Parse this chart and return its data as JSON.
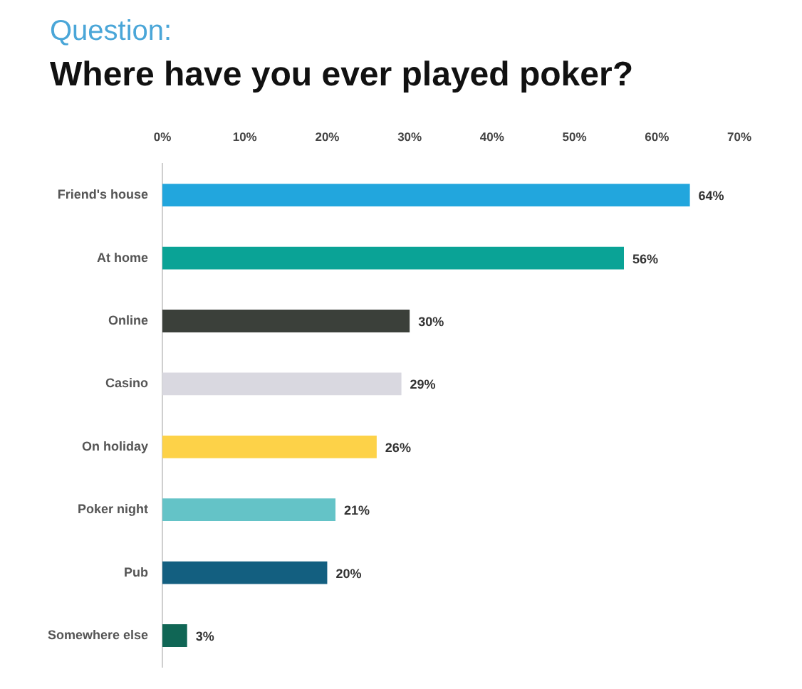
{
  "chart_data": {
    "type": "bar",
    "orientation": "horizontal",
    "subtitle": "Question:",
    "title": "Where have you ever played poker?",
    "categories": [
      "Friend's house",
      "At home",
      "Online",
      "Casino",
      "On holiday",
      "Poker night",
      "Pub",
      "Somewhere else"
    ],
    "values": [
      64,
      56,
      30,
      29,
      26,
      21,
      20,
      3
    ],
    "colors": [
      "#22a6dd",
      "#0aa396",
      "#3b403a",
      "#d9d8e0",
      "#fdd248",
      "#64c3c7",
      "#135f80",
      "#106655"
    ],
    "value_labels": [
      "64%",
      "56%",
      "30%",
      "29%",
      "26%",
      "21%",
      "20%",
      "3%"
    ],
    "xlim": [
      0,
      70
    ],
    "xticks": [
      {
        "value": 0,
        "label": "0%"
      },
      {
        "value": 10,
        "label": "10%"
      },
      {
        "value": 20,
        "label": "20%"
      },
      {
        "value": 30,
        "label": "30%"
      },
      {
        "value": 40,
        "label": "40%"
      },
      {
        "value": 50,
        "label": "50%"
      },
      {
        "value": 60,
        "label": "60%"
      },
      {
        "value": 70,
        "label": "70%"
      }
    ]
  }
}
